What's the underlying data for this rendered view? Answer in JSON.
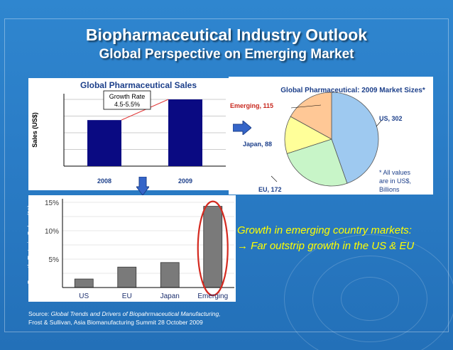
{
  "slide": {
    "title": "Biopharmaceutical Industry Outlook",
    "subtitle": "Global Perspective on Emerging Market",
    "headline_line1": "Growth in emerging country markets:",
    "headline_line2": "→ Far outstrip growth in the US & EU",
    "source_label": "Source:",
    "source_italic": "Global Trends and Drivers of Biopahrmaceutical Manufacturing,",
    "source_line2": "Frost & Sullivan, Asia Biomanufacturing Summit  28 October 2009"
  },
  "chart_data": [
    {
      "type": "bar",
      "title": "Global Pharmaceutical Sales",
      "ylabel": "Sales (US$)",
      "xlabel": "",
      "categories": [
        "2008",
        "2009"
      ],
      "values": [
        0.69,
        1.0
      ],
      "annotation": {
        "line1": "Growth Rate",
        "line2": "4.5-5.5%"
      },
      "grid": true,
      "bar_color": "#0a0a82"
    },
    {
      "type": "pie",
      "title": "Global Pharmaceutical: 2009 Market Sizes*",
      "slices": [
        {
          "label": "US",
          "value": 302,
          "display": "US, 302",
          "color": "#9ec9f0"
        },
        {
          "label": "EU",
          "value": 172,
          "display": "EU, 172",
          "color": "#c8f5c8"
        },
        {
          "label": "Japan",
          "value": 88,
          "display": "Japan, 88",
          "color": "#ffff99"
        },
        {
          "label": "Emerging",
          "value": 115,
          "display": "Emerging, 115",
          "color": "#ffc896"
        }
      ],
      "note_lines": [
        "* All values",
        "are in US$,",
        "Billions"
      ],
      "label_color": "#1c3f8a",
      "emerging_label_color": "#c8281e"
    },
    {
      "type": "bar",
      "title": "",
      "ylabel": "Growth Rate in Sales (%)",
      "xlabel": "",
      "categories": [
        "US",
        "EU",
        "Japan",
        "Emerging"
      ],
      "values": [
        1.5,
        3.6,
        4.4,
        14.3
      ],
      "ylim": [
        0,
        15
      ],
      "yticks": [
        "5%",
        "10%",
        "15%"
      ],
      "ytick_values": [
        5,
        10,
        15
      ],
      "highlight": "Emerging",
      "highlight_color": "#d42a20",
      "bar_color": "#7a7a7a",
      "grid": true
    }
  ]
}
